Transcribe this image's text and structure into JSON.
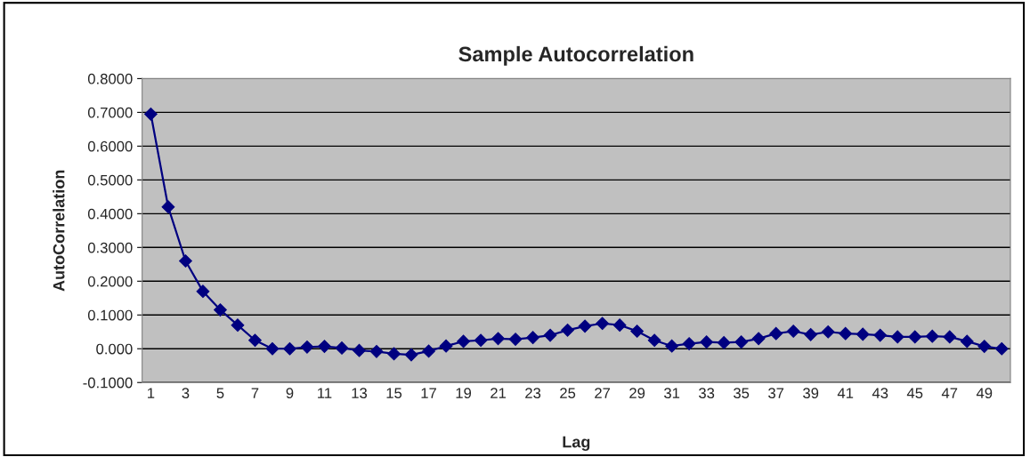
{
  "chart_data": {
    "type": "line",
    "title": "Sample Autocorrelation",
    "xlabel": "Lag",
    "ylabel": "AutoCorrelation",
    "categories": [
      "1",
      null,
      "3",
      null,
      "5",
      null,
      "7",
      null,
      "9",
      null,
      "11",
      null,
      "13",
      null,
      "15",
      null,
      "17",
      null,
      "19",
      null,
      "21",
      null,
      "23",
      null,
      "25",
      null,
      "27",
      null,
      "29",
      null,
      "31",
      null,
      "33",
      null,
      "35",
      null,
      "37",
      null,
      "39",
      null,
      "41",
      null,
      "43",
      null,
      "45",
      null,
      "47",
      null,
      "49",
      null
    ],
    "series": [
      {
        "color": "#000080",
        "values": [
          0.695,
          0.42,
          0.26,
          0.17,
          0.115,
          0.07,
          0.025,
          0.0,
          0.0,
          0.005,
          0.007,
          0.002,
          -0.005,
          -0.008,
          -0.015,
          -0.018,
          -0.007,
          0.008,
          0.022,
          0.025,
          0.03,
          0.028,
          0.033,
          0.04,
          0.055,
          0.067,
          0.075,
          0.07,
          0.052,
          0.025,
          0.008,
          0.015,
          0.02,
          0.018,
          0.02,
          0.03,
          0.045,
          0.052,
          0.042,
          0.05,
          0.045,
          0.043,
          0.04,
          0.035,
          0.035,
          0.037,
          0.035,
          0.022,
          0.007,
          0.0
        ]
      }
    ],
    "ylim": [
      -0.1,
      0.8
    ],
    "yticks": [
      {
        "value": -0.1,
        "label": "-0.1000"
      },
      {
        "value": 0,
        "label": "0.000"
      },
      {
        "value": 0.1,
        "label": "0.1000"
      },
      {
        "value": 0.2,
        "label": "0.2000"
      },
      {
        "value": 0.3,
        "label": "0.3000"
      },
      {
        "value": 0.4,
        "label": "0.4000"
      },
      {
        "value": 0.5,
        "label": "0.5000"
      },
      {
        "value": 0.6,
        "label": "0.6000"
      },
      {
        "value": 0.7,
        "label": "0.7000"
      },
      {
        "value": 0.8,
        "label": "0.8000"
      }
    ],
    "grid": "y",
    "marker": "diamond",
    "line_style": "solid"
  }
}
